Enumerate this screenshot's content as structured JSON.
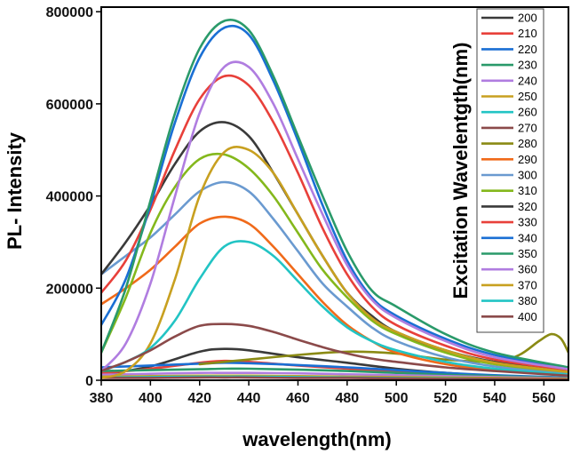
{
  "chart_data": {
    "type": "line",
    "title": "",
    "xlabel": "wavelength(nm)",
    "ylabel": "PL- Intensity",
    "legend_title": "Excitation Wavelentgth(nm)",
    "legend_position": "top-right",
    "xlim": [
      380,
      570
    ],
    "ylim": [
      0,
      810000
    ],
    "xticks": [
      380,
      400,
      420,
      440,
      460,
      480,
      500,
      520,
      540,
      560
    ],
    "yticks": [
      0,
      200000,
      400000,
      600000,
      800000
    ],
    "xtick_labels": [
      "380",
      "400",
      "420",
      "440",
      "460",
      "480",
      "500",
      "520",
      "540",
      "560"
    ],
    "ytick_labels": [
      "0",
      "200000",
      "400000",
      "600000",
      "800000"
    ],
    "grid": false,
    "series": [
      {
        "name": "200",
        "color": "#3a3a3a",
        "x": [
          380,
          400,
          420,
          430,
          440,
          460,
          480,
          500,
          520,
          540,
          570
        ],
        "values": [
          12000,
          30000,
          62000,
          68000,
          65000,
          50000,
          38000,
          25000,
          16000,
          10000,
          5000
        ]
      },
      {
        "name": "210",
        "color": "#e8403a",
        "x": [
          380,
          400,
          420,
          430,
          440,
          460,
          480,
          500,
          520,
          540,
          570
        ],
        "values": [
          15000,
          25000,
          38000,
          42000,
          40000,
          32000,
          25000,
          18000,
          12000,
          8000,
          5000
        ]
      },
      {
        "name": "220",
        "color": "#1a6fd4",
        "x": [
          380,
          400,
          420,
          430,
          440,
          460,
          480,
          500,
          520,
          540,
          570
        ],
        "values": [
          28000,
          32000,
          36000,
          38000,
          37000,
          33000,
          28000,
          22000,
          16000,
          11000,
          6000
        ]
      },
      {
        "name": "230",
        "color": "#2a9a6a",
        "x": [
          380,
          400,
          420,
          430,
          440,
          460,
          480,
          500,
          520,
          540,
          570
        ],
        "values": [
          20000,
          22000,
          24000,
          25000,
          25000,
          23000,
          20000,
          16000,
          12000,
          9000,
          5000
        ]
      },
      {
        "name": "240",
        "color": "#b07de0",
        "x": [
          380,
          400,
          420,
          430,
          440,
          460,
          480,
          500,
          520,
          540,
          570
        ],
        "values": [
          12000,
          14000,
          16000,
          16000,
          16000,
          15000,
          13000,
          11000,
          9000,
          7000,
          4000
        ]
      },
      {
        "name": "250",
        "color": "#c8a020",
        "x": [
          380,
          400,
          420,
          430,
          440,
          460,
          480,
          500,
          520,
          540,
          570
        ],
        "values": [
          8000,
          9000,
          10000,
          10000,
          10000,
          9000,
          8000,
          7000,
          6000,
          5000,
          3000
        ]
      },
      {
        "name": "260",
        "color": "#22c4c4",
        "x": [
          380,
          400,
          420,
          430,
          440,
          460,
          480,
          500,
          520,
          540,
          570
        ],
        "values": [
          6000,
          7000,
          8000,
          8000,
          8000,
          7000,
          6000,
          5000,
          4000,
          3000,
          2000
        ]
      },
      {
        "name": "270",
        "color": "#8b4a4a",
        "x": [
          380,
          400,
          420,
          430,
          440,
          460,
          480,
          500,
          520,
          540,
          570
        ],
        "values": [
          5000,
          5000,
          6000,
          6000,
          6000,
          5000,
          5000,
          4000,
          3000,
          3000,
          2000
        ]
      },
      {
        "name": "280",
        "color": "#8a8a14",
        "x": [
          420,
          440,
          460,
          480,
          500,
          520,
          540,
          550,
          558,
          563,
          567,
          570
        ],
        "values": [
          35000,
          45000,
          55000,
          62000,
          58000,
          45000,
          40000,
          55000,
          85000,
          100000,
          90000,
          60000
        ]
      },
      {
        "name": "290",
        "color": "#f06a1a",
        "x": [
          380,
          390,
          400,
          410,
          420,
          430,
          440,
          450,
          460,
          470,
          480,
          490,
          500,
          520,
          540,
          570
        ],
        "values": [
          165000,
          200000,
          240000,
          290000,
          340000,
          355000,
          340000,
          290000,
          230000,
          170000,
          120000,
          85000,
          60000,
          35000,
          22000,
          12000
        ]
      },
      {
        "name": "300",
        "color": "#6a9ad0",
        "x": [
          380,
          390,
          400,
          410,
          420,
          430,
          440,
          450,
          460,
          470,
          480,
          490,
          500,
          520,
          540,
          570
        ],
        "values": [
          230000,
          270000,
          310000,
          360000,
          410000,
          430000,
          410000,
          350000,
          280000,
          210000,
          160000,
          115000,
          85000,
          50000,
          30000,
          15000
        ]
      },
      {
        "name": "310",
        "color": "#84b81c",
        "x": [
          380,
          390,
          400,
          410,
          420,
          430,
          440,
          450,
          460,
          470,
          480,
          490,
          500,
          520,
          540,
          570
        ],
        "values": [
          60000,
          180000,
          320000,
          420000,
          480000,
          490000,
          460000,
          400000,
          320000,
          240000,
          180000,
          130000,
          100000,
          60000,
          35000,
          18000
        ]
      },
      {
        "name": "320",
        "color": "#3a3a3a",
        "x": [
          380,
          390,
          400,
          410,
          420,
          430,
          440,
          450,
          460,
          470,
          480,
          490,
          500,
          520,
          540,
          570
        ],
        "values": [
          230000,
          300000,
          380000,
          470000,
          540000,
          560000,
          530000,
          450000,
          360000,
          270000,
          190000,
          140000,
          105000,
          65000,
          40000,
          20000
        ]
      },
      {
        "name": "330",
        "color": "#e8403a",
        "x": [
          380,
          390,
          400,
          410,
          420,
          430,
          440,
          450,
          460,
          470,
          480,
          490,
          500,
          520,
          540,
          570
        ],
        "values": [
          190000,
          260000,
          370000,
          500000,
          610000,
          660000,
          640000,
          560000,
          450000,
          330000,
          230000,
          160000,
          120000,
          75000,
          45000,
          22000
        ]
      },
      {
        "name": "340",
        "color": "#1a6fd4",
        "x": [
          380,
          390,
          400,
          410,
          420,
          430,
          440,
          450,
          460,
          470,
          480,
          490,
          500,
          520,
          540,
          570
        ],
        "values": [
          120000,
          220000,
          380000,
          560000,
          700000,
          765000,
          750000,
          650000,
          520000,
          380000,
          260000,
          180000,
          140000,
          90000,
          55000,
          25000
        ]
      },
      {
        "name": "350",
        "color": "#2a9a6a",
        "x": [
          380,
          390,
          400,
          410,
          420,
          430,
          440,
          450,
          460,
          470,
          480,
          490,
          500,
          520,
          540,
          570
        ],
        "values": [
          60000,
          200000,
          390000,
          580000,
          720000,
          780000,
          760000,
          660000,
          530000,
          400000,
          280000,
          195000,
          160000,
          100000,
          60000,
          28000
        ]
      },
      {
        "name": "360",
        "color": "#b07de0",
        "x": [
          380,
          390,
          400,
          410,
          420,
          430,
          440,
          450,
          460,
          470,
          480,
          490,
          500,
          520,
          540,
          570
        ],
        "values": [
          20000,
          80000,
          210000,
          400000,
          580000,
          680000,
          680000,
          600000,
          480000,
          360000,
          250000,
          175000,
          135000,
          85000,
          50000,
          24000
        ]
      },
      {
        "name": "370",
        "color": "#c8a020",
        "x": [
          380,
          390,
          400,
          410,
          420,
          430,
          440,
          450,
          460,
          470,
          480,
          490,
          500,
          520,
          540,
          570
        ],
        "values": [
          5000,
          20000,
          80000,
          220000,
          400000,
          495000,
          500000,
          450000,
          360000,
          270000,
          190000,
          135000,
          105000,
          65000,
          38000,
          18000
        ]
      },
      {
        "name": "380",
        "color": "#22c4c4",
        "x": [
          380,
          390,
          400,
          410,
          420,
          430,
          440,
          450,
          460,
          470,
          480,
          490,
          500,
          520,
          540,
          570
        ],
        "values": [
          20000,
          40000,
          70000,
          130000,
          220000,
          290000,
          300000,
          270000,
          215000,
          160000,
          115000,
          85000,
          65000,
          40000,
          25000,
          12000
        ]
      },
      {
        "name": "400",
        "color": "#8b4a4a",
        "x": [
          380,
          390,
          400,
          410,
          420,
          430,
          440,
          450,
          460,
          470,
          480,
          490,
          500,
          520,
          540,
          570
        ],
        "values": [
          20000,
          40000,
          65000,
          95000,
          118000,
          122000,
          118000,
          105000,
          88000,
          72000,
          58000,
          47000,
          40000,
          28000,
          20000,
          10000
        ]
      }
    ]
  }
}
